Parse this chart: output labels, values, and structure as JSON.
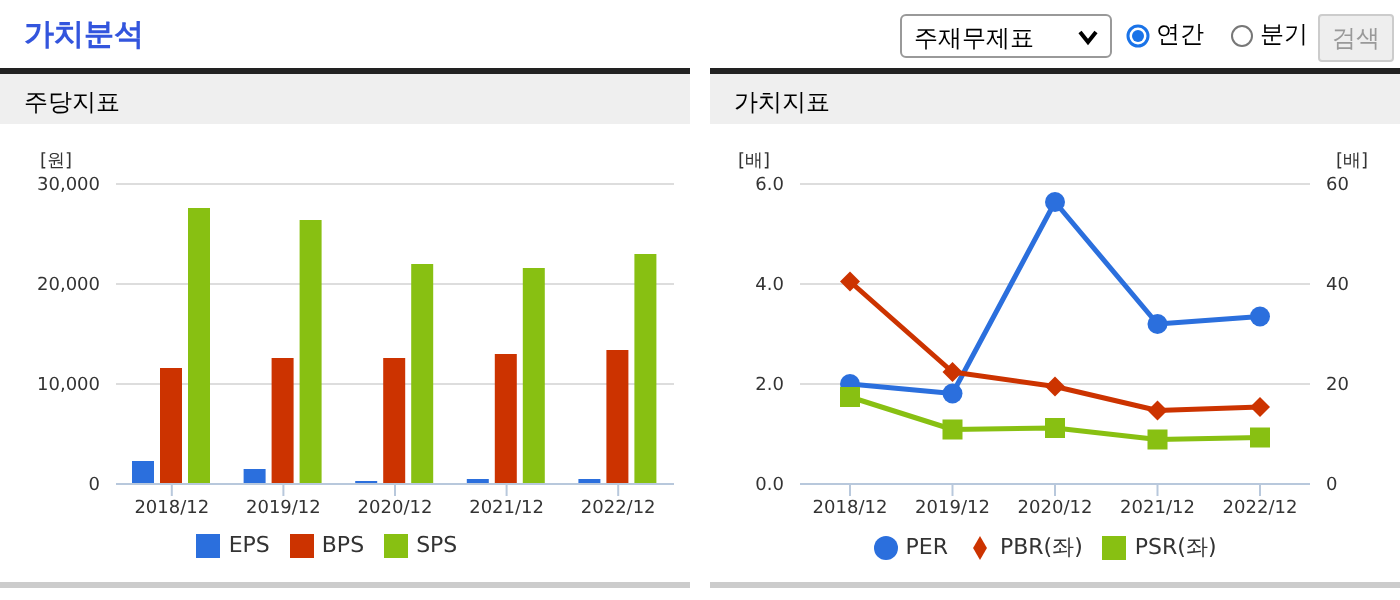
{
  "chart_data": [
    {
      "type": "other",
      "title": "가치분석",
      "annotations": [
        "주재무제표",
        "연간",
        "분기",
        "검색"
      ]
    },
    {
      "type": "bar",
      "title": "주당지표",
      "ylabel": "[원]",
      "categories": [
        "2018/12",
        "2019/12",
        "2020/12",
        "2021/12",
        "2022/12"
      ],
      "series": [
        {
          "name": "EPS",
          "color": "#2b6fdd",
          "values": [
            2300,
            1500,
            300,
            500,
            500
          ]
        },
        {
          "name": "BPS",
          "color": "#cc3300",
          "values": [
            11600,
            12600,
            12600,
            13000,
            13400
          ]
        },
        {
          "name": "SPS",
          "color": "#88c012",
          "values": [
            27600,
            26400,
            22000,
            21600,
            23000
          ]
        }
      ],
      "ylim": [
        0,
        30000
      ],
      "yticks": [
        0,
        {
          "value": 10000,
          "label": "10,000"
        },
        {
          "value": 20000,
          "label": "20,000"
        },
        {
          "value": 30000,
          "label": "30,000"
        }
      ],
      "grid": "y",
      "legend": "bottom"
    },
    {
      "type": "line",
      "title": "가치지표",
      "ylabel": "[배]",
      "y2label": "[배]",
      "categories": [
        "2018/12",
        "2019/12",
        "2020/12",
        "2021/12",
        "2022/12"
      ],
      "series": [
        {
          "name": "PER",
          "color": "#2b6fdd",
          "axis": "y2",
          "marker": "circle",
          "values": [
            20,
            18.1,
            56.4,
            32,
            33.5
          ]
        },
        {
          "name": "PBR(좌)",
          "color": "#cc3300",
          "marker": "diamond",
          "values": [
            4.05,
            2.24,
            1.95,
            1.47,
            1.54
          ]
        },
        {
          "name": "PSR(좌)",
          "color": "#88c012",
          "marker": "square",
          "values": [
            1.74,
            1.09,
            1.12,
            0.89,
            0.93
          ]
        }
      ],
      "ylim": [
        0,
        6
      ],
      "yticks": [
        {
          "value": 0,
          "label": "0.0"
        },
        {
          "value": 2,
          "label": "2.0"
        },
        {
          "value": 4,
          "label": "4.0"
        },
        {
          "value": 6,
          "label": "6.0"
        }
      ],
      "y2lim": [
        0,
        60
      ],
      "y2ticks": [
        0,
        20,
        40,
        60
      ],
      "grid": "y",
      "legend": "bottom"
    }
  ]
}
